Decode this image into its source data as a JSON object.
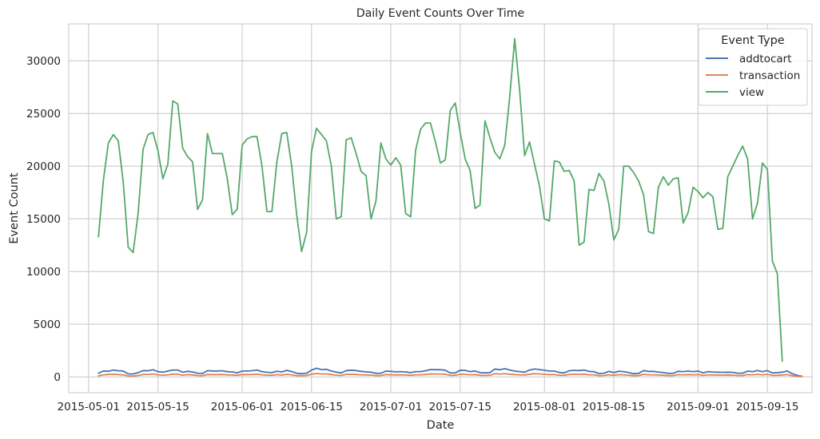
{
  "chart_data": {
    "type": "line",
    "title": "Daily Event Counts Over Time",
    "xlabel": "Date",
    "ylabel": "Event Count",
    "x_start": "2015-05-03",
    "x_end": "2015-09-18",
    "xlim": [
      "2015-04-27",
      "2015-09-24"
    ],
    "ylim": [
      -1500,
      33500
    ],
    "x_ticks": [
      "2015-05-01",
      "2015-05-15",
      "2015-06-01",
      "2015-06-15",
      "2015-07-01",
      "2015-07-15",
      "2015-08-01",
      "2015-08-15",
      "2015-09-01",
      "2015-09-15"
    ],
    "y_ticks": [
      0,
      5000,
      10000,
      15000,
      20000,
      25000,
      30000
    ],
    "grid": true,
    "legend": {
      "title": "Event Type",
      "placement": "top-right"
    },
    "colors": {
      "addtocart": "#4c72b0",
      "transaction": "#dd8452",
      "view": "#55a868",
      "grid": "#cccccc"
    },
    "series": [
      {
        "name": "addtocart",
        "values": [
          350,
          560,
          540,
          650,
          580,
          560,
          280,
          280,
          400,
          600,
          580,
          680,
          500,
          440,
          550,
          650,
          650,
          440,
          530,
          470,
          350,
          320,
          590,
          560,
          560,
          580,
          490,
          470,
          390,
          550,
          550,
          580,
          650,
          500,
          430,
          400,
          540,
          470,
          620,
          510,
          340,
          300,
          350,
          650,
          820,
          700,
          720,
          550,
          450,
          380,
          600,
          640,
          600,
          520,
          480,
          450,
          330,
          340,
          550,
          520,
          480,
          500,
          470,
          400,
          500,
          500,
          580,
          700,
          680,
          680,
          640,
          360,
          380,
          640,
          620,
          500,
          560,
          400,
          380,
          400,
          750,
          680,
          780,
          650,
          550,
          500,
          450,
          650,
          750,
          700,
          630,
          550,
          550,
          420,
          380,
          580,
          620,
          600,
          650,
          520,
          500,
          320,
          350,
          520,
          400,
          540,
          500,
          420,
          300,
          330,
          600,
          520,
          520,
          460,
          400,
          330,
          340,
          530,
          500,
          550,
          500,
          550,
          380,
          500,
          460,
          450,
          430,
          450,
          430,
          350,
          350,
          550,
          500,
          600,
          500,
          600,
          370,
          400,
          450,
          560,
          300,
          150,
          50
        ]
      },
      {
        "name": "transaction",
        "values": [
          100,
          200,
          230,
          250,
          220,
          200,
          80,
          80,
          130,
          230,
          240,
          270,
          200,
          160,
          200,
          260,
          250,
          160,
          210,
          190,
          130,
          110,
          230,
          220,
          220,
          230,
          190,
          180,
          150,
          220,
          220,
          230,
          260,
          200,
          170,
          150,
          210,
          180,
          240,
          200,
          120,
          110,
          130,
          260,
          320,
          280,
          280,
          220,
          170,
          140,
          240,
          250,
          230,
          200,
          190,
          170,
          120,
          130,
          220,
          200,
          190,
          200,
          180,
          150,
          200,
          200,
          230,
          280,
          270,
          270,
          250,
          140,
          150,
          250,
          240,
          200,
          220,
          150,
          140,
          150,
          300,
          270,
          310,
          260,
          220,
          200,
          180,
          260,
          300,
          280,
          250,
          220,
          220,
          160,
          150,
          230,
          250,
          240,
          260,
          200,
          200,
          120,
          130,
          200,
          150,
          210,
          200,
          160,
          110,
          120,
          240,
          200,
          200,
          180,
          150,
          120,
          130,
          210,
          200,
          220,
          200,
          220,
          140,
          200,
          180,
          180,
          170,
          180,
          170,
          130,
          130,
          220,
          200,
          240,
          200,
          240,
          140,
          150,
          180,
          220,
          110,
          50,
          20
        ]
      },
      {
        "name": "view",
        "values": [
          13300,
          18700,
          22200,
          23000,
          22400,
          18500,
          12300,
          11800,
          15500,
          21600,
          23000,
          23200,
          21500,
          18800,
          20200,
          26200,
          25900,
          21700,
          20900,
          20400,
          15900,
          16800,
          23100,
          21200,
          21200,
          21200,
          18800,
          15400,
          15900,
          22000,
          22600,
          22800,
          22800,
          20000,
          15700,
          15700,
          20400,
          23100,
          23200,
          20000,
          15400,
          11900,
          13700,
          21400,
          23600,
          23000,
          22400,
          20000,
          15000,
          15200,
          22500,
          22700,
          21200,
          19500,
          19100,
          15000,
          16700,
          22200,
          20700,
          20100,
          20800,
          20100,
          15500,
          15200,
          21500,
          23500,
          24100,
          24100,
          22300,
          20300,
          20600,
          25300,
          26000,
          23200,
          20700,
          19600,
          16000,
          16300,
          24300,
          22700,
          21300,
          20700,
          22000,
          26600,
          32100,
          27200,
          21000,
          22300,
          20200,
          18100,
          15000,
          14800,
          20500,
          20400,
          19500,
          19600,
          18600,
          12500,
          12800,
          17800,
          17700,
          19300,
          18600,
          16400,
          13000,
          14000,
          20000,
          20000,
          19400,
          18600,
          17300,
          13800,
          13600,
          18000,
          19000,
          18200,
          18800,
          18900,
          14600,
          15600,
          18000,
          17600,
          17000,
          17500,
          17100,
          14000,
          14100,
          19000,
          20000,
          21000,
          21900,
          20700,
          15000,
          16500,
          20300,
          19700,
          11000,
          9800,
          1500
        ]
      }
    ]
  }
}
